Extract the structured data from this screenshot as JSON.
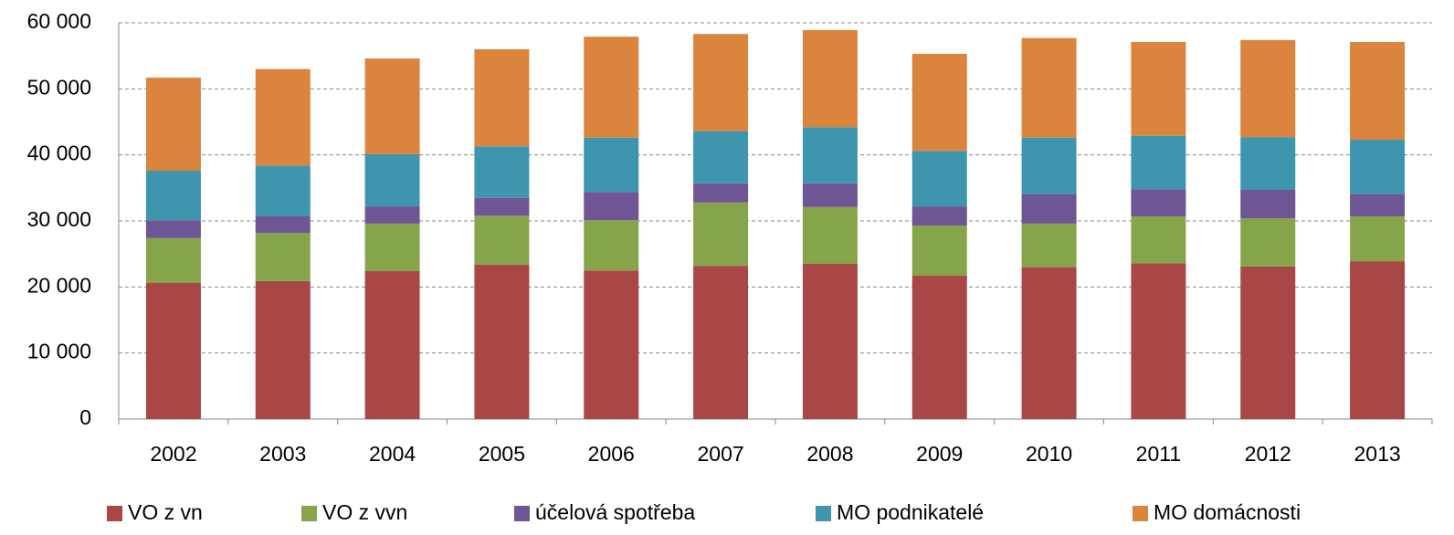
{
  "chart_data": {
    "type": "stacked_bar",
    "categories": [
      "2002",
      "2003",
      "2004",
      "2005",
      "2006",
      "2007",
      "2008",
      "2009",
      "2010",
      "2011",
      "2012",
      "2013"
    ],
    "series": [
      {
        "name": "VO z vn",
        "color": "#a84745",
        "values": [
          20600,
          20900,
          22400,
          23400,
          22500,
          23200,
          23500,
          21700,
          23000,
          23600,
          23100,
          23900
        ]
      },
      {
        "name": "VO z vvn",
        "color": "#86a44a",
        "values": [
          6800,
          7300,
          7200,
          7400,
          7600,
          9600,
          8600,
          7600,
          6600,
          7100,
          7300,
          6800
        ]
      },
      {
        "name": "účelová spotřeba",
        "color": "#6e5594",
        "values": [
          2700,
          2500,
          2600,
          2700,
          4300,
          2900,
          3600,
          2900,
          4500,
          4100,
          4300,
          3400
        ]
      },
      {
        "name": "MO podnikatelé",
        "color": "#3d96ae",
        "values": [
          7500,
          7700,
          7900,
          7800,
          8200,
          7900,
          8500,
          8400,
          8500,
          8100,
          8000,
          8200
        ]
      },
      {
        "name": "MO domácnosti",
        "color": "#db843d",
        "values": [
          14100,
          14600,
          14500,
          14700,
          15300,
          14700,
          14700,
          14700,
          15100,
          14200,
          14700,
          14800
        ]
      }
    ],
    "ylim": [
      0,
      60000
    ],
    "yticks": [
      0,
      {
        "value": 10000,
        "label": "10 000"
      },
      {
        "value": 20000,
        "label": "20 000"
      },
      {
        "value": 30000,
        "label": "30 000"
      },
      {
        "value": 40000,
        "label": "40 000"
      },
      {
        "value": 50000,
        "label": "50 000"
      },
      {
        "value": 60000,
        "label": "60 000"
      }
    ],
    "grid": true
  }
}
